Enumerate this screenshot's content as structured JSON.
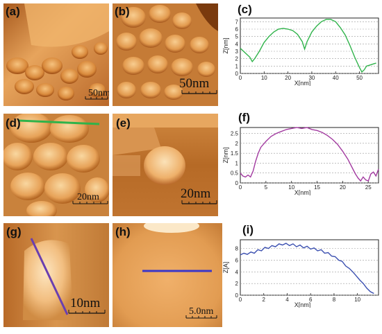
{
  "panels": {
    "a": {
      "label": "(a)",
      "scale": "50nm"
    },
    "b": {
      "label": "(b)",
      "scale": "50nm"
    },
    "c": {
      "label": "(c)"
    },
    "d": {
      "label": "(d)",
      "scale": "20nm"
    },
    "e": {
      "label": "(e)",
      "scale": "20nm"
    },
    "f": {
      "label": "(f)"
    },
    "g": {
      "label": "(g)",
      "scale": "10nm"
    },
    "h": {
      "label": "(h)",
      "scale": "5.0nm"
    },
    "i": {
      "label": "(i)"
    }
  },
  "colors": {
    "line_c": "#2fb34a",
    "line_f": "#a23aa0",
    "line_i": "#3a4fb0",
    "marker_d": "#2fb34a",
    "marker_g": "#6a3fb0",
    "marker_h": "#3a36c8"
  },
  "chart_data": [
    {
      "id": "c",
      "type": "line",
      "xlabel": "X[nm]",
      "ylabel": "Z[nm]",
      "xlim": [
        0,
        58
      ],
      "ylim": [
        0,
        7.5
      ],
      "xticks": [
        0,
        10,
        20,
        30,
        40,
        50
      ],
      "yticks": [
        0,
        1,
        2,
        3,
        4,
        5,
        6,
        7
      ],
      "x": [
        0,
        2,
        4,
        5,
        6,
        8,
        10,
        12,
        14,
        16,
        18,
        20,
        22,
        24,
        26,
        27,
        28,
        30,
        32,
        34,
        36,
        38,
        40,
        42,
        44,
        46,
        48,
        50,
        51,
        52,
        53,
        54,
        56,
        57
      ],
      "y": [
        3.4,
        2.8,
        2.2,
        1.6,
        2.0,
        3.0,
        4.2,
        5.0,
        5.6,
        6.0,
        6.1,
        6.0,
        5.8,
        5.3,
        4.3,
        3.3,
        4.3,
        5.6,
        6.4,
        7.0,
        7.3,
        7.3,
        7.0,
        6.2,
        5.2,
        3.8,
        2.2,
        0.8,
        0.2,
        0.5,
        1.0,
        1.1,
        1.3,
        1.4
      ]
    },
    {
      "id": "f",
      "type": "line",
      "xlabel": "X[nm]",
      "ylabel": "Z[nm]",
      "xlim": [
        0,
        27
      ],
      "ylim": [
        0,
        2.8
      ],
      "xticks": [
        0,
        5,
        10,
        15,
        20,
        25
      ],
      "yticks": [
        0,
        0.5,
        1,
        1.5,
        2,
        2.5
      ],
      "x": [
        0,
        0.5,
        1,
        1.5,
        2,
        2.5,
        3,
        3.5,
        4,
        5,
        6,
        7,
        8,
        9,
        10,
        11,
        12,
        13,
        14,
        15,
        16,
        17,
        18,
        19,
        20,
        21,
        22,
        22.5,
        23,
        23.5,
        24,
        24.5,
        25,
        25.5,
        26,
        26.5,
        27
      ],
      "y": [
        0.5,
        0.35,
        0.3,
        0.4,
        0.3,
        0.6,
        1.1,
        1.5,
        1.8,
        2.1,
        2.35,
        2.5,
        2.6,
        2.7,
        2.75,
        2.8,
        2.75,
        2.8,
        2.7,
        2.65,
        2.55,
        2.4,
        2.2,
        1.95,
        1.6,
        1.2,
        0.7,
        0.45,
        0.25,
        0.1,
        0.3,
        0.15,
        0.1,
        0.45,
        0.55,
        0.35,
        0.7
      ]
    },
    {
      "id": "i",
      "type": "line",
      "xlabel": "X[nm]",
      "ylabel": "Z[A]",
      "xlim": [
        0,
        11.8
      ],
      "ylim": [
        0,
        9.5
      ],
      "xticks": [
        0,
        2,
        4,
        6,
        8,
        10
      ],
      "yticks": [
        0,
        2,
        4,
        6,
        8
      ],
      "x": [
        0,
        0.3,
        0.6,
        0.9,
        1.2,
        1.5,
        1.8,
        2.1,
        2.4,
        2.7,
        3.0,
        3.3,
        3.6,
        3.9,
        4.2,
        4.5,
        4.8,
        5.1,
        5.4,
        5.7,
        6.0,
        6.3,
        6.6,
        6.9,
        7.2,
        7.5,
        7.8,
        8.1,
        8.4,
        8.7,
        9.0,
        9.3,
        9.6,
        9.9,
        10.2,
        10.5,
        10.8,
        11.1,
        11.4
      ],
      "y": [
        6.9,
        7.2,
        7.0,
        7.4,
        7.2,
        7.8,
        7.6,
        8.2,
        8.0,
        8.5,
        8.3,
        8.8,
        8.6,
        8.9,
        8.5,
        8.8,
        8.3,
        8.6,
        8.1,
        8.4,
        7.9,
        8.1,
        7.6,
        7.8,
        7.2,
        7.3,
        6.7,
        6.6,
        6.0,
        5.8,
        5.0,
        4.6,
        4.0,
        3.3,
        2.6,
        2.0,
        1.2,
        0.6,
        0.3
      ]
    }
  ]
}
